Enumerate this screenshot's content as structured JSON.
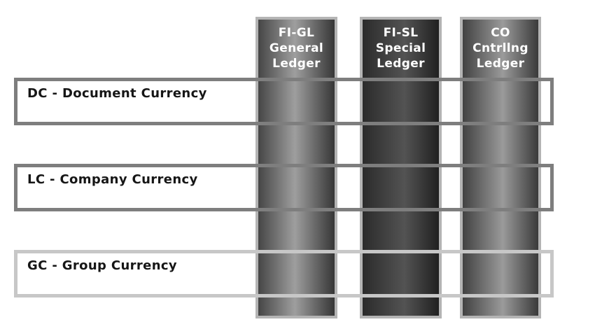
{
  "diagram": {
    "description": "Ledger vs currency matrix diagram",
    "background_color": "#ffffff"
  },
  "columns": [
    {
      "name": "FI-GL General Ledger",
      "lines": [
        "FI-GL",
        "General",
        "Ledger"
      ],
      "fill_edge_color": "#464646",
      "fill_center_color": "#9e9e9e",
      "border_color": "#b4b4b4",
      "text_color": "#ffffff"
    },
    {
      "name": "FI-SL Special Ledger",
      "lines": [
        "FI-SL",
        "Special",
        "Ledger"
      ],
      "fill_edge_color": "#2b2b2b",
      "fill_center_color": "#535353",
      "border_color": "#b4b4b4",
      "text_color": "#ffffff"
    },
    {
      "name": "CO Cntrllng Ledger",
      "lines": [
        "CO",
        "Cntrllng",
        "Ledger"
      ],
      "fill_edge_color": "#424242",
      "fill_center_color": "#9a9a9a",
      "border_color": "#b4b4b4",
      "text_color": "#ffffff"
    }
  ],
  "rows": [
    {
      "label": "DC - Document Currency",
      "border_color": "#7e7e7e",
      "text_color": "#161616"
    },
    {
      "label": "LC - Company Currency",
      "border_color": "#7e7e7e",
      "text_color": "#161616"
    },
    {
      "label": "GC - Group Currency",
      "border_color": "#c7c7c7",
      "text_color": "#161616"
    }
  ]
}
